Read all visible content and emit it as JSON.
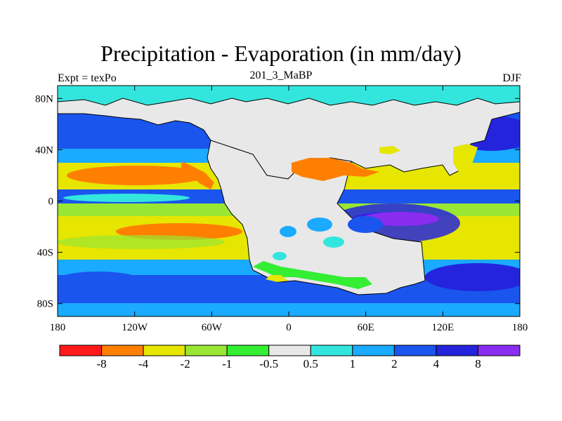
{
  "title": "Precipitation - Evaporation (in mm/day)",
  "subtitle_left": "Expt = texPo",
  "subtitle_center": "201_3_MaBP",
  "subtitle_right": "DJF",
  "map": {
    "lon_range": [
      -180,
      180
    ],
    "lat_range": [
      -90,
      90
    ],
    "lon_ticks": [
      {
        "value": -180,
        "label": "180"
      },
      {
        "value": -120,
        "label": "120W"
      },
      {
        "value": -60,
        "label": "60W"
      },
      {
        "value": 0,
        "label": "0"
      },
      {
        "value": 60,
        "label": "60E"
      },
      {
        "value": 120,
        "label": "120E"
      },
      {
        "value": 180,
        "label": "180"
      }
    ],
    "lat_ticks": [
      {
        "value": 80,
        "label": "80N"
      },
      {
        "value": 40,
        "label": "40N"
      },
      {
        "value": 0,
        "label": "0"
      },
      {
        "value": -40,
        "label": "40S"
      },
      {
        "value": -80,
        "label": "80S"
      }
    ]
  },
  "colorbar": {
    "colors": [
      "#ff1a1a",
      "#ff8000",
      "#e6e600",
      "#99e633",
      "#33ee33",
      "#e8e8e8",
      "#33e6dd",
      "#1aaaff",
      "#1a55ee",
      "#2424dd",
      "#8a2cf0"
    ],
    "labels": [
      "-8",
      "-4",
      "-2",
      "-1",
      "-0.5",
      "0.5",
      "1",
      "2",
      "4",
      "8"
    ]
  }
}
